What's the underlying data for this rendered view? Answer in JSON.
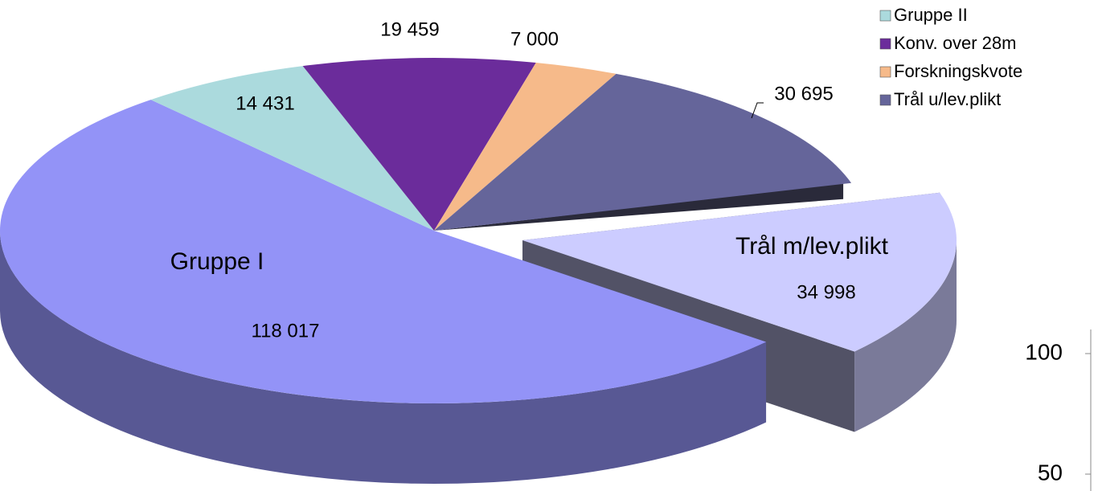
{
  "chart_data": [
    {
      "type": "pie3d",
      "categories": [
        "Trål m/lev.plikt",
        "Gruppe I",
        "Gruppe II",
        "Konv. over 28m",
        "Forskningskvote",
        "Trål u/lev.plikt"
      ],
      "values": [
        34998,
        118017,
        14431,
        19459,
        7000,
        30695
      ],
      "value_labels": [
        "34 998",
        "118 017",
        "14 431",
        "19 459",
        "7 000",
        "30 695"
      ],
      "colors": [
        "#ccccff",
        "#9393f7",
        "#abdadd",
        "#6b2c9b",
        "#f6ba8a",
        "#65659a"
      ],
      "exploded": [
        "Trål m/lev.plikt"
      ],
      "legend": "top-right"
    },
    {
      "type": "axis",
      "ylim": [
        43,
        110
      ],
      "yticks": [
        50,
        100
      ]
    }
  ]
}
